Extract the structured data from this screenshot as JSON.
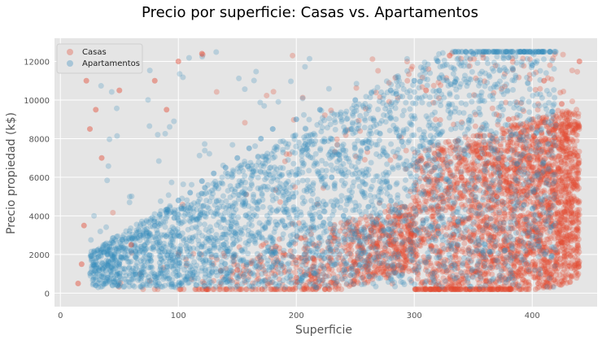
{
  "chart_data": {
    "type": "scatter",
    "title": "Precio por superficie: Casas vs. Apartamentos",
    "xlabel": "Superficie",
    "ylabel": "Precio propiedad (k$)",
    "xlim": [
      -5,
      455
    ],
    "ylim": [
      -700,
      13200
    ],
    "xticks": [
      0,
      100,
      200,
      300,
      400
    ],
    "yticks": [
      0,
      2000,
      4000,
      6000,
      8000,
      10000,
      12000
    ],
    "grid": true,
    "legend_position": "top-left",
    "colors": {
      "casas": "#E24A33",
      "apartamentos": "#348ABD",
      "plot_background": "#E5E5E5",
      "grid": "#FFFFFF"
    },
    "series": [
      {
        "name": "Casas",
        "x_range": [
          15,
          440
        ],
        "y_range": [
          200,
          12500
        ],
        "points": [
          [
            15,
            500
          ],
          [
            18,
            1500
          ],
          [
            20,
            3500
          ],
          [
            22,
            11000
          ],
          [
            25,
            8500
          ],
          [
            30,
            9500
          ],
          [
            35,
            7000
          ],
          [
            50,
            10500
          ],
          [
            60,
            2500
          ],
          [
            80,
            11000
          ],
          [
            90,
            9500
          ],
          [
            100,
            12000
          ],
          [
            120,
            12400
          ],
          [
            150,
            1200
          ],
          [
            200,
            800
          ],
          [
            250,
            1500
          ],
          [
            280,
            2500
          ],
          [
            300,
            3000
          ],
          [
            320,
            4500
          ],
          [
            340,
            6000
          ],
          [
            350,
            3000
          ],
          [
            360,
            7500
          ],
          [
            370,
            5000
          ],
          [
            380,
            9000
          ],
          [
            390,
            4000
          ],
          [
            400,
            6500
          ],
          [
            410,
            11000
          ],
          [
            420,
            3500
          ],
          [
            430,
            8000
          ],
          [
            435,
            5500
          ],
          [
            440,
            12000
          ],
          [
            310,
            10500
          ],
          [
            330,
            12300
          ],
          [
            395,
            1500
          ],
          [
            405,
            500
          ],
          [
            425,
            9800
          ]
        ]
      },
      {
        "name": "Apartamentos",
        "x_range": [
          25,
          420
        ],
        "y_range": [
          200,
          12500
        ],
        "points": [
          [
            30,
            400
          ],
          [
            40,
            800
          ],
          [
            50,
            1500
          ],
          [
            60,
            2200
          ],
          [
            70,
            3000
          ],
          [
            80,
            3500
          ],
          [
            90,
            4200
          ],
          [
            100,
            4800
          ],
          [
            110,
            5200
          ],
          [
            120,
            5800
          ],
          [
            130,
            6200
          ],
          [
            140,
            6500
          ],
          [
            150,
            7000
          ],
          [
            160,
            7500
          ],
          [
            170,
            8000
          ],
          [
            180,
            8500
          ],
          [
            200,
            9000
          ],
          [
            220,
            9500
          ],
          [
            250,
            10000
          ],
          [
            280,
            10500
          ],
          [
            300,
            11000
          ],
          [
            320,
            12000
          ],
          [
            350,
            12400
          ],
          [
            380,
            12200
          ],
          [
            400,
            11800
          ],
          [
            260,
            7500
          ],
          [
            230,
            6000
          ],
          [
            190,
            3500
          ],
          [
            240,
            4000
          ]
        ]
      }
    ]
  }
}
